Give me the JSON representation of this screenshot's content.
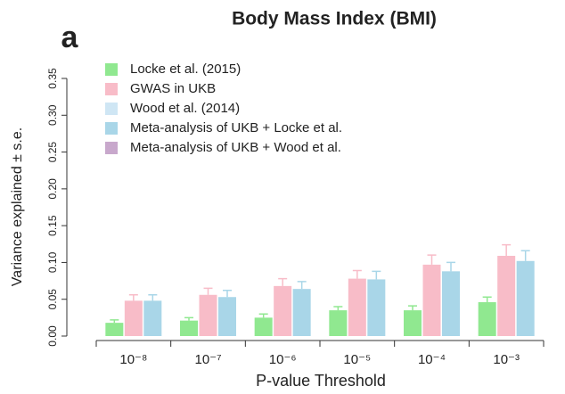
{
  "chart_data": {
    "type": "bar",
    "panel_label": "a",
    "title": "Body Mass Index (BMI)",
    "x_label": "P-value Threshold",
    "y_label": "Variance explained ± s.e.",
    "categories": [
      "10⁻⁸",
      "10⁻⁷",
      "10⁻⁶",
      "10⁻⁵",
      "10⁻⁴",
      "10⁻³"
    ],
    "series": [
      {
        "name": "Locke et al. (2015)",
        "color": "#90e890",
        "values": [
          0.018,
          0.021,
          0.025,
          0.035,
          0.035,
          0.046
        ],
        "errors": [
          0.004,
          0.004,
          0.005,
          0.005,
          0.006,
          0.007
        ]
      },
      {
        "name": "GWAS in UKB",
        "color": "#f8bcc8",
        "values": [
          0.048,
          0.056,
          0.068,
          0.078,
          0.097,
          0.109
        ],
        "errors": [
          0.008,
          0.009,
          0.01,
          0.011,
          0.013,
          0.015
        ]
      },
      {
        "name": "Wood et al. (2014)",
        "color": "#cfe6f4",
        "values": [
          null,
          null,
          null,
          null,
          null,
          null
        ],
        "errors": [
          null,
          null,
          null,
          null,
          null,
          null
        ]
      },
      {
        "name": "Meta-analysis of UKB + Locke et al.",
        "color": "#a9d6e8",
        "values": [
          0.048,
          0.053,
          0.064,
          0.077,
          0.088,
          0.102
        ],
        "errors": [
          0.008,
          0.009,
          0.01,
          0.011,
          0.012,
          0.014
        ]
      },
      {
        "name": "Meta-analysis of UKB + Wood et al.",
        "color": "#c8a8cc",
        "values": [
          null,
          null,
          null,
          null,
          null,
          null
        ],
        "errors": [
          null,
          null,
          null,
          null,
          null,
          null
        ]
      }
    ],
    "ylim": [
      0,
      0.35
    ],
    "yticks": [
      {
        "value": 0,
        "label": "0.00"
      },
      {
        "value": 0.05,
        "label": "0.05"
      },
      {
        "value": 0.1,
        "label": "0.10"
      },
      {
        "value": 0.15,
        "label": "0.15"
      },
      {
        "value": 0.2,
        "label": "0.20"
      },
      {
        "value": 0.25,
        "label": "0.25"
      },
      {
        "value": 0.3,
        "label": "0.30"
      },
      {
        "value": 0.35,
        "label": "0.35"
      }
    ],
    "grid": false,
    "legend": "top-left"
  }
}
